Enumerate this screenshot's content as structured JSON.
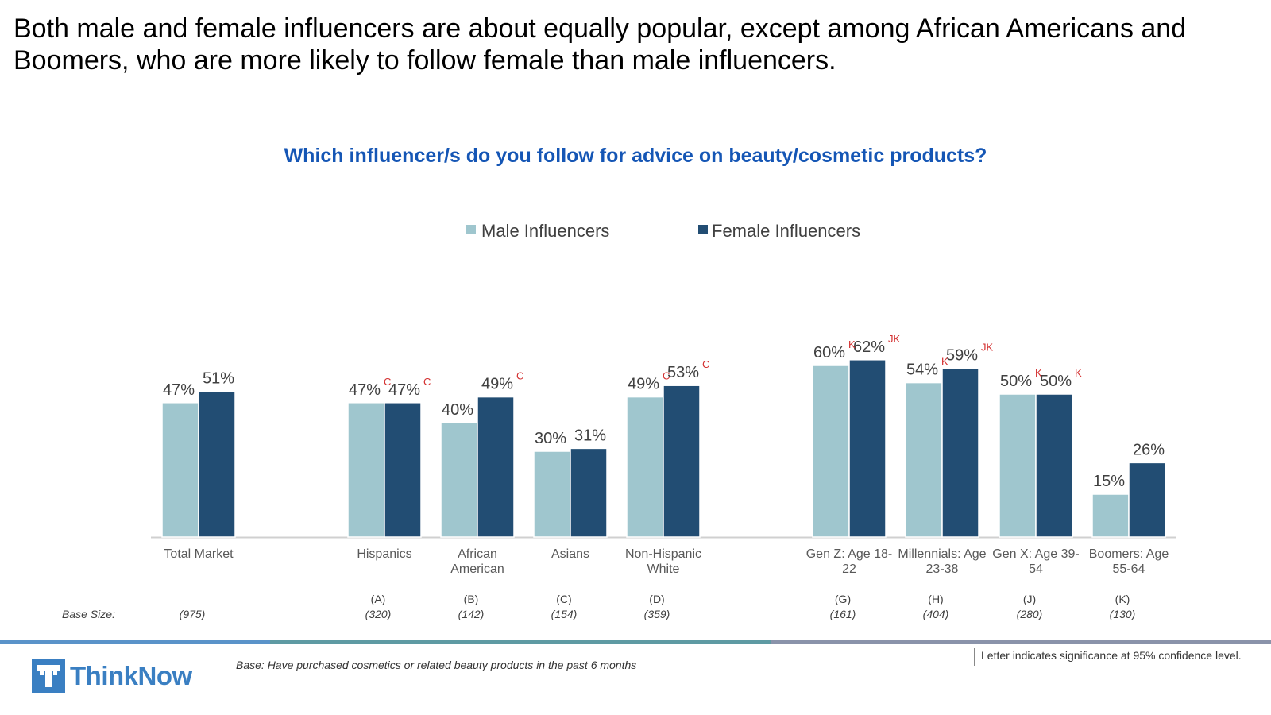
{
  "headline": "Both male and female influencers are about equally popular, except among African Americans and Boomers, who are more likely to follow female than male influencers.",
  "chart_title": "Which influencer/s do you follow for advice on beauty/cosmetic products?",
  "base_size_label": "Base Size:",
  "base_note": "Base: Have purchased cosmetics or related beauty products in the past 6 months",
  "significance_note": "Letter indicates significance at 95% confidence level.",
  "logo_text": "ThinkNow",
  "colors": {
    "male": "#9fc6ce",
    "female": "#224d73",
    "sig_letter": "#d32f2f",
    "title_blue": "#1556b5",
    "footer_blue": "#5a93c9",
    "footer_teal": "#5e9aa3",
    "footer_gray": "#8a93aa"
  },
  "chart_data": {
    "type": "bar",
    "title": "Which influencer/s do you follow for advice on beauty/cosmetic products?",
    "ylim": [
      0,
      70
    ],
    "legend": "top-center",
    "series": [
      {
        "name": "Male Influencers",
        "values": [
          47,
          47,
          40,
          30,
          49,
          60,
          54,
          50,
          15
        ]
      },
      {
        "name": "Female Influencers",
        "values": [
          51,
          47,
          49,
          31,
          53,
          62,
          59,
          50,
          26
        ]
      }
    ],
    "categories": [
      {
        "lines": [
          "Total Market"
        ],
        "code": "",
        "base": "(975)",
        "group": 0
      },
      {
        "lines": [
          "Hispanics"
        ],
        "code": "(A)",
        "base": "(320)",
        "group": 1
      },
      {
        "lines": [
          "African",
          "American"
        ],
        "code": "(B)",
        "base": "(142)",
        "group": 1
      },
      {
        "lines": [
          "Asians"
        ],
        "code": "(C)",
        "base": "(154)",
        "group": 1
      },
      {
        "lines": [
          "Non-Hispanic",
          "White"
        ],
        "code": "(D)",
        "base": "(359)",
        "group": 1
      },
      {
        "lines": [
          "Gen Z: Age 18-",
          "22"
        ],
        "code": "(G)",
        "base": "(161)",
        "group": 2
      },
      {
        "lines": [
          "Millennials: Age",
          "23-38"
        ],
        "code": "(H)",
        "base": "(404)",
        "group": 2
      },
      {
        "lines": [
          "Gen X: Age 39-",
          "54"
        ],
        "code": "(J)",
        "base": "(280)",
        "group": 2
      },
      {
        "lines": [
          "Boomers: Age",
          "55-64"
        ],
        "code": "(K)",
        "base": "(130)",
        "group": 2
      }
    ],
    "value_labels": {
      "male": [
        "47%",
        "47%",
        "40%",
        "30%",
        "49%",
        "60%",
        "54%",
        "50%",
        "15%"
      ],
      "female": [
        "51%",
        "47%",
        "49%",
        "31%",
        "53%",
        "62%",
        "59%",
        "50%",
        "26%"
      ]
    },
    "significance": {
      "male": [
        "",
        "C",
        "",
        "",
        "C",
        "K",
        "K",
        "K",
        ""
      ],
      "female": [
        "",
        "C",
        "C",
        "",
        "C",
        "JK",
        "JK",
        "K",
        ""
      ]
    }
  }
}
